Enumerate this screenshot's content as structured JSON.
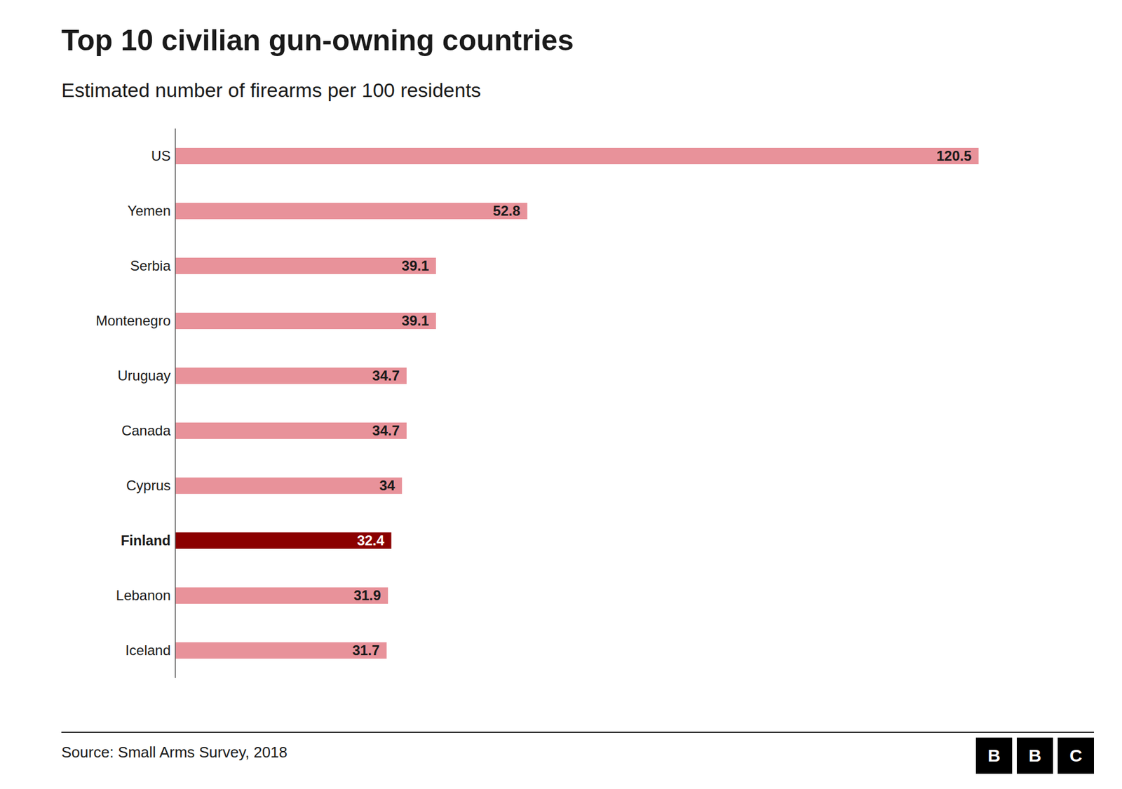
{
  "chart_data": {
    "type": "bar",
    "orientation": "horizontal",
    "title": "Top 10 civilian gun-owning countries",
    "subtitle": "Estimated number of firearms per 100 residents",
    "source": "Source: Small Arms Survey, 2018",
    "logo": "BBC",
    "categories": [
      "US",
      "Yemen",
      "Serbia",
      "Montenegro",
      "Uruguay",
      "Canada",
      "Cyprus",
      "Finland",
      "Lebanon",
      "Iceland"
    ],
    "values": [
      120.5,
      52.8,
      39.1,
      39.1,
      34.7,
      34.7,
      34.0,
      32.4,
      31.9,
      31.7
    ],
    "colors": [
      "#e8929a",
      "#e8929a",
      "#e8929a",
      "#e8929a",
      "#e8929a",
      "#e8929a",
      "#e8929a",
      "#8b0000",
      "#e8929a",
      "#e8929a"
    ],
    "xlim": [
      0,
      135
    ],
    "data_labels": true,
    "tick_labels": "y",
    "grid": false
  }
}
